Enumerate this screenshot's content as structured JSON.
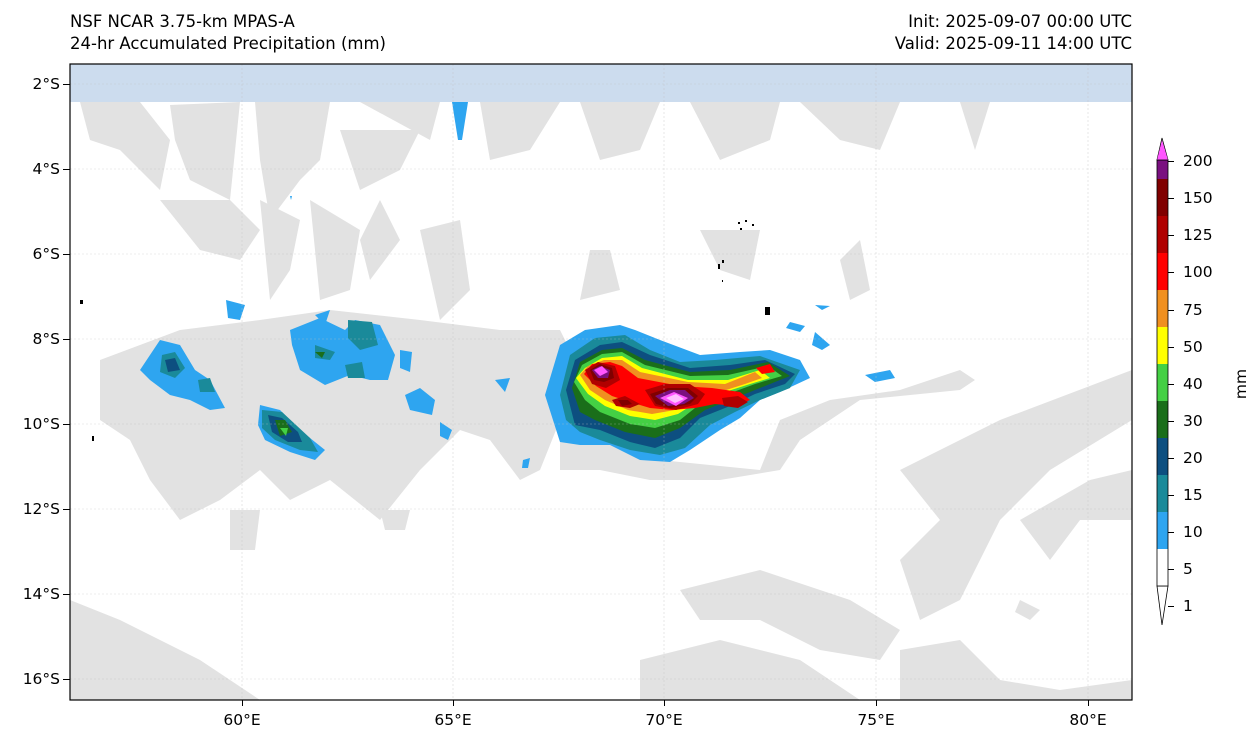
{
  "title_left": [
    "NSF NCAR 3.75-km MPAS-A",
    "24-hr Accumulated Precipitation (mm)"
  ],
  "title_right": [
    "Init: 2025-09-07 00:00 UTC",
    "Valid: 2025-09-11 14:00 UTC"
  ],
  "map": {
    "lon_ticks": [
      "60°E",
      "65°E",
      "70°E",
      "75°E",
      "80°E"
    ],
    "lat_ticks": [
      "2°S",
      "4°S",
      "6°S",
      "8°S",
      "10°S",
      "12°S",
      "14°S",
      "16°S"
    ],
    "lon_range": [
      56,
      81
    ],
    "lat_range": [
      -16.5,
      -1.5
    ],
    "gridlines": true
  },
  "colorbar": {
    "unit": "mm",
    "levels": [
      "1",
      "5",
      "10",
      "15",
      "20",
      "30",
      "40",
      "50",
      "75",
      "100",
      "125",
      "150",
      "200"
    ],
    "colors": [
      "#ffffff",
      "#2ea5f0",
      "#1a8a9a",
      "#0d4f80",
      "#1a6e1a",
      "#44d044",
      "#ffff00",
      "#f09020",
      "#ff0000",
      "#b00000",
      "#800000",
      "#7a1080",
      "#ff55ff"
    ],
    "extend": "both"
  }
}
